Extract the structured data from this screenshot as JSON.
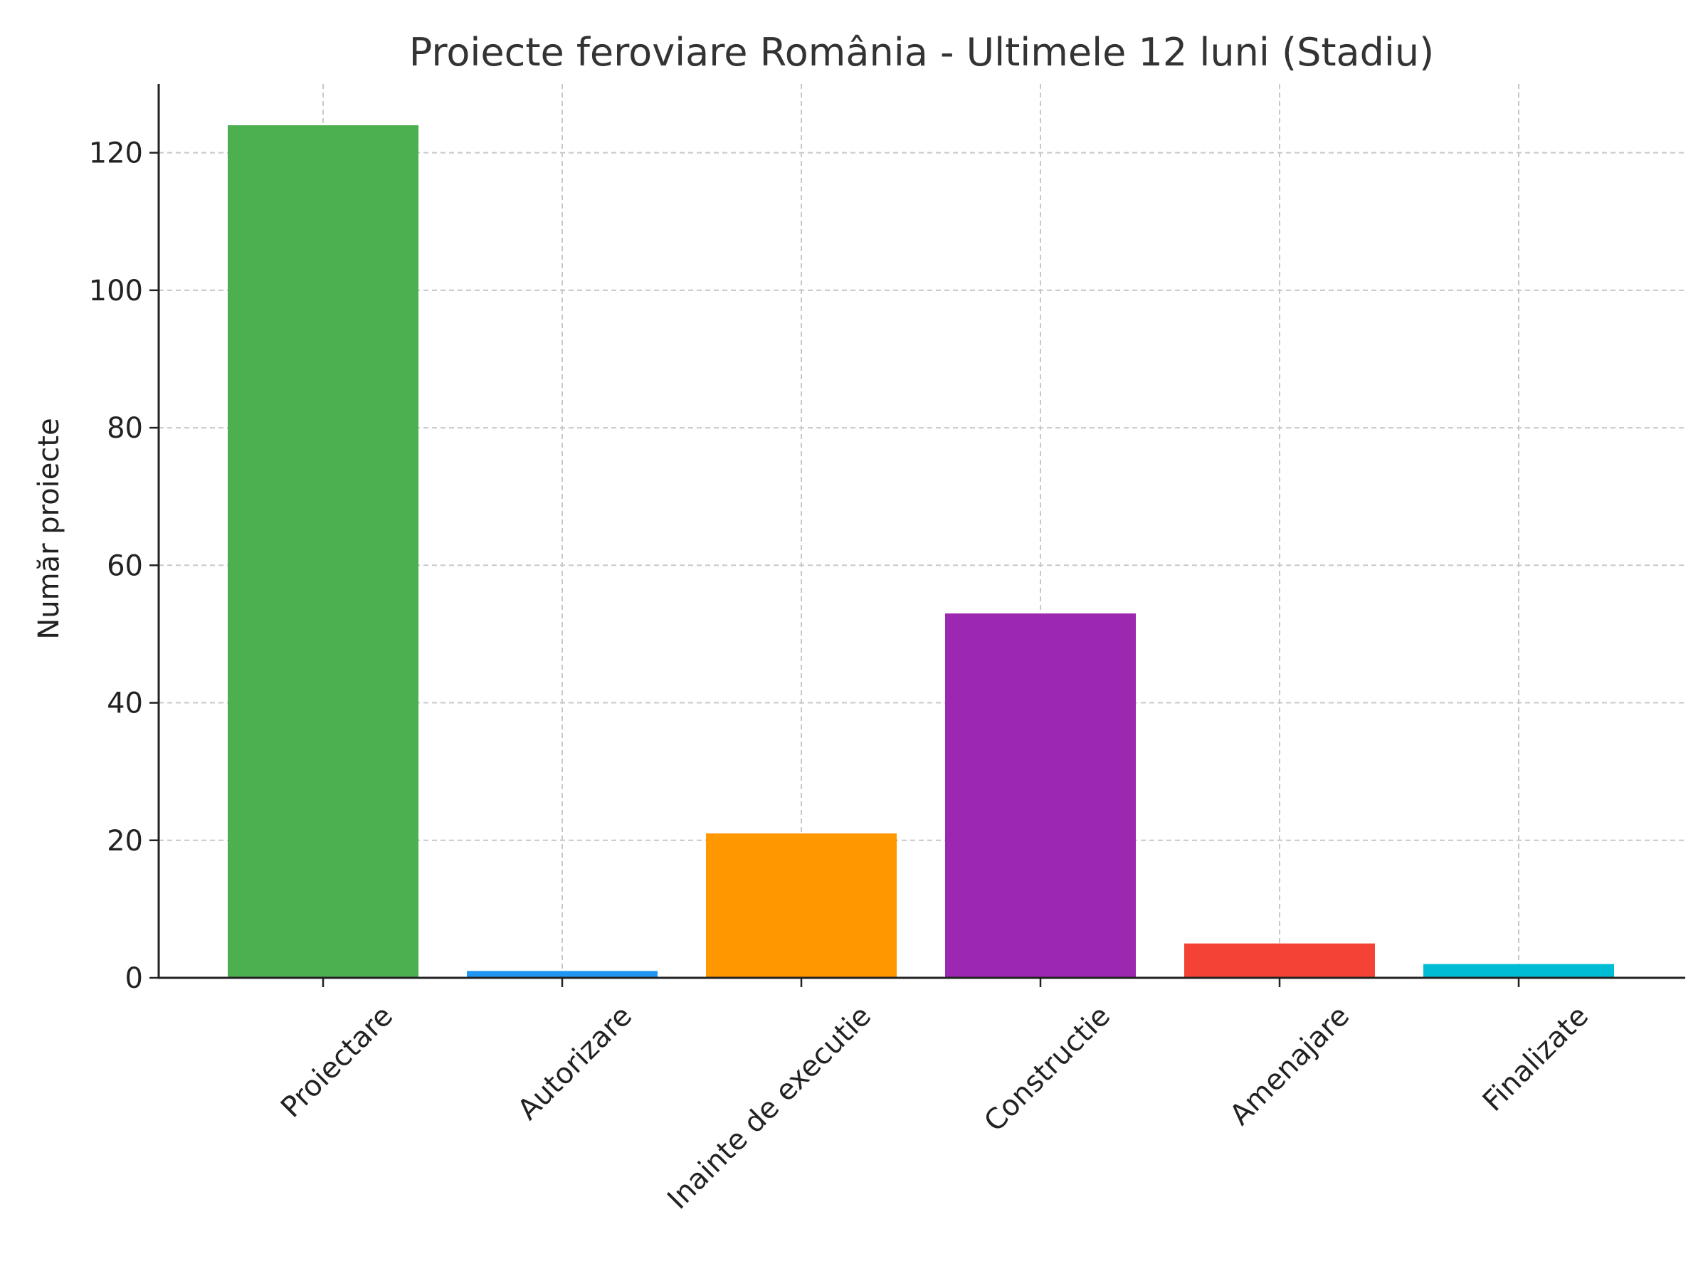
{
  "chart_data": {
    "type": "bar",
    "title": "Proiecte feroviare România - Ultimele 12 luni (Stadiu)",
    "xlabel": "",
    "ylabel": "Număr proiecte",
    "categories": [
      "Proiectare",
      "Autorizare",
      "Inainte de executie",
      "Constructie",
      "Amenajare",
      "Finalizate"
    ],
    "values": [
      124,
      1,
      21,
      53,
      5,
      2
    ],
    "colors": [
      "#4caf50",
      "#2196f3",
      "#ff9800",
      "#9c27b0",
      "#f44336",
      "#00bcd4"
    ],
    "ylim": [
      0,
      130
    ],
    "yticks": [
      0,
      20,
      40,
      60,
      80,
      100,
      120
    ],
    "grid": true,
    "legend": "none"
  }
}
